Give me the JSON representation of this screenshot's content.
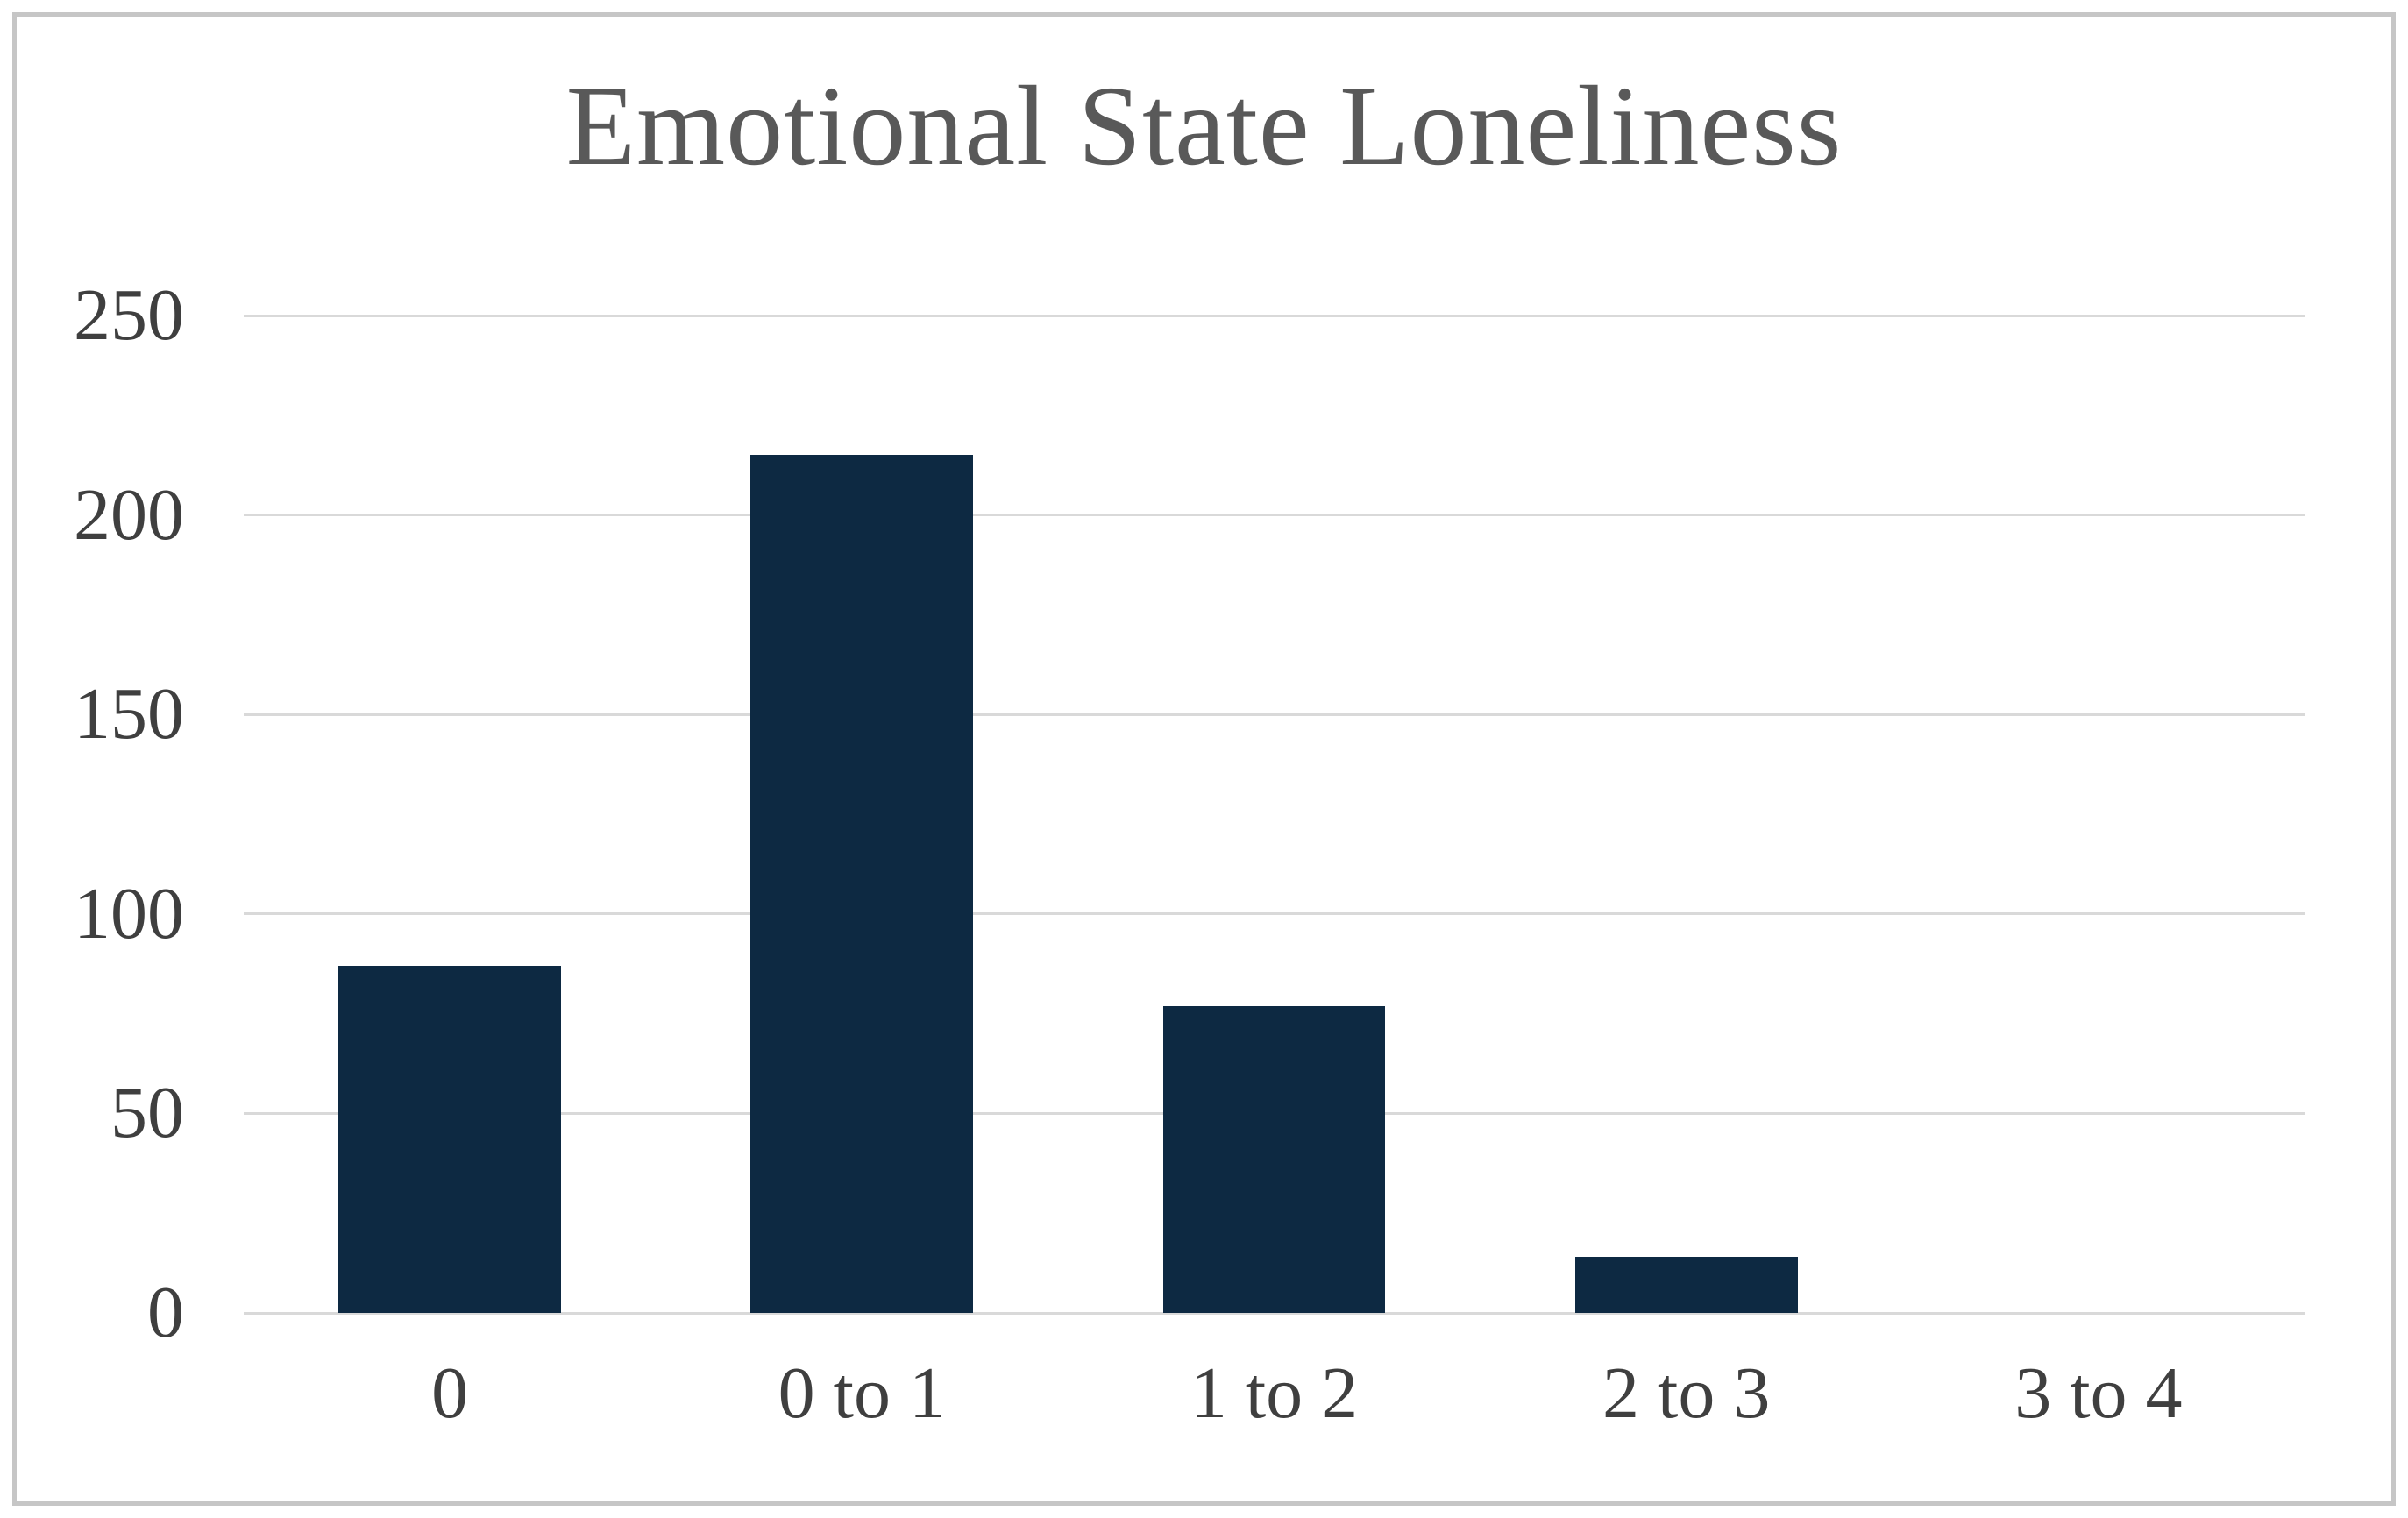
{
  "chart_data": {
    "type": "bar",
    "title": "Emotional State Loneliness",
    "categories": [
      "0",
      "0 to 1",
      "1 to 2",
      "2 to 3",
      "3 to 4"
    ],
    "values": [
      87,
      215,
      77,
      14,
      0
    ],
    "xlabel": "",
    "ylabel": "",
    "ylim": [
      0,
      250
    ],
    "yticks": [
      0,
      50,
      100,
      150,
      200,
      250
    ],
    "grid": "horizontal",
    "legend": "none",
    "bar_color": "#0d2942",
    "gridline_color": "#d9d9d9",
    "title_color": "#595959",
    "tick_label_color": "#3f3f3f",
    "frame_border_color": "#c6c6c6",
    "background_color": "#ffffff",
    "bar_width_fraction_of_slot": 0.54
  }
}
